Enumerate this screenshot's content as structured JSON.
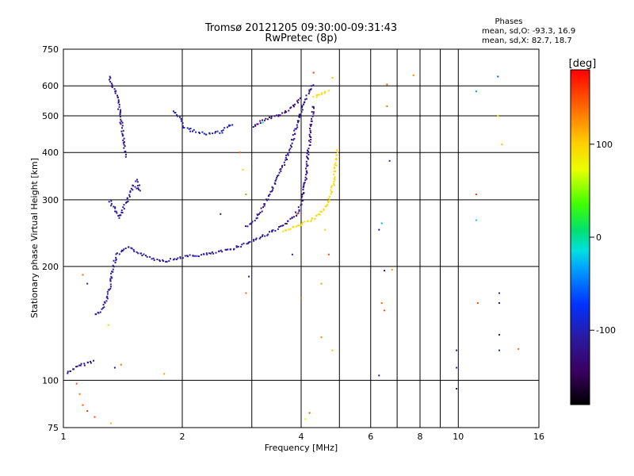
{
  "chart_data": {
    "type": "scatter",
    "title": "Tromsø 20121205 09:30:00-09:31:43",
    "subtitle": "RwPretec (8p)",
    "xlabel": "Frequency [MHz]",
    "ylabel": "Stationary phase Virtual Height [km]",
    "x_scale": "log",
    "y_scale": "log",
    "xlim": [
      1,
      16
    ],
    "ylim": [
      75,
      750
    ],
    "x_ticks": [
      1,
      2,
      4,
      6,
      8,
      10,
      16
    ],
    "x_tick_labels": [
      "1",
      "2",
      "4",
      "6",
      "8",
      "10",
      "16"
    ],
    "y_ticks": [
      75,
      100,
      200,
      300,
      400,
      500,
      600,
      750
    ],
    "y_tick_labels": [
      "75",
      "100",
      "200",
      "300",
      "400",
      "500",
      "600",
      "750"
    ],
    "grid": true,
    "stats": {
      "title": "Phases",
      "line1": "mean, sd,O: -93.3, 16.9",
      "line2": "mean, sd,X:  82.7, 18.7"
    },
    "colorbar": {
      "label": "[deg]",
      "range": [
        -180,
        180
      ],
      "ticks": [
        100,
        0,
        -100
      ],
      "tick_labels": [
        "100",
        "0",
        "-100"
      ]
    },
    "trace_segments": [
      {
        "phase": -115,
        "points": [
          [
            1.02,
            105
          ],
          [
            1.06,
            108
          ],
          [
            1.1,
            110
          ],
          [
            1.15,
            112
          ],
          [
            1.2,
            113
          ]
        ]
      },
      {
        "phase": -110,
        "points": [
          [
            1.2,
            150
          ],
          [
            1.24,
            153
          ],
          [
            1.27,
            160
          ],
          [
            1.3,
            175
          ],
          [
            1.32,
            190
          ],
          [
            1.34,
            205
          ],
          [
            1.36,
            215
          ],
          [
            1.4,
            220
          ],
          [
            1.45,
            225
          ],
          [
            1.5,
            222
          ],
          [
            1.6,
            215
          ],
          [
            1.7,
            210
          ],
          [
            1.8,
            208
          ],
          [
            1.9,
            210
          ],
          [
            2.0,
            213
          ],
          [
            2.2,
            215
          ],
          [
            2.4,
            218
          ],
          [
            2.6,
            222
          ],
          [
            2.8,
            228
          ],
          [
            3.0,
            235
          ],
          [
            3.2,
            242
          ],
          [
            3.4,
            250
          ],
          [
            3.6,
            258
          ]
        ]
      },
      {
        "phase": -120,
        "points": [
          [
            3.6,
            258
          ],
          [
            3.8,
            270
          ],
          [
            3.9,
            280
          ],
          [
            4.0,
            295
          ],
          [
            4.05,
            320
          ],
          [
            4.1,
            350
          ],
          [
            4.15,
            400
          ],
          [
            4.2,
            450
          ],
          [
            4.25,
            500
          ],
          [
            4.3,
            540
          ]
        ]
      },
      {
        "phase": -118,
        "points": [
          [
            2.9,
            255
          ],
          [
            3.0,
            262
          ],
          [
            3.1,
            275
          ],
          [
            3.2,
            290
          ],
          [
            3.3,
            310
          ],
          [
            3.4,
            330
          ],
          [
            3.5,
            350
          ],
          [
            3.6,
            375
          ],
          [
            3.7,
            400
          ],
          [
            3.8,
            440
          ],
          [
            3.9,
            480
          ],
          [
            4.0,
            520
          ],
          [
            4.1,
            560
          ],
          [
            4.2,
            590
          ],
          [
            4.3,
            610
          ]
        ]
      },
      {
        "phase": -118,
        "points": [
          [
            1.3,
            640
          ],
          [
            1.32,
            610
          ],
          [
            1.34,
            590
          ],
          [
            1.36,
            570
          ],
          [
            1.38,
            520
          ],
          [
            1.4,
            470
          ],
          [
            1.42,
            420
          ],
          [
            1.44,
            390
          ]
        ]
      },
      {
        "phase": -110,
        "points": [
          [
            1.3,
            300
          ],
          [
            1.33,
            290
          ],
          [
            1.36,
            280
          ],
          [
            1.38,
            270
          ],
          [
            1.5,
            330
          ],
          [
            1.55,
            320
          ],
          [
            1.52,
            345
          ]
        ]
      },
      {
        "phase": -100,
        "points": [
          [
            1.9,
            520
          ],
          [
            1.95,
            500
          ],
          [
            2.0,
            470
          ],
          [
            2.1,
            460
          ],
          [
            2.3,
            450
          ],
          [
            2.5,
            455
          ],
          [
            2.6,
            470
          ],
          [
            2.7,
            480
          ]
        ]
      },
      {
        "phase": -130,
        "points": [
          [
            3.0,
            470
          ],
          [
            3.1,
            480
          ],
          [
            3.2,
            490
          ],
          [
            3.4,
            500
          ],
          [
            3.6,
            510
          ],
          [
            3.8,
            530
          ],
          [
            4.0,
            560
          ]
        ]
      },
      {
        "phase": 95,
        "points": [
          [
            3.6,
            250
          ],
          [
            3.8,
            255
          ],
          [
            4.0,
            260
          ],
          [
            4.2,
            265
          ],
          [
            4.4,
            275
          ],
          [
            4.6,
            290
          ],
          [
            4.7,
            305
          ],
          [
            4.8,
            330
          ],
          [
            4.85,
            360
          ],
          [
            4.9,
            390
          ],
          [
            4.95,
            410
          ]
        ]
      },
      {
        "phase": 90,
        "points": [
          [
            4.3,
            560
          ],
          [
            4.4,
            570
          ],
          [
            4.6,
            580
          ],
          [
            4.7,
            585
          ]
        ]
      }
    ],
    "scatter_points": [
      {
        "x": 6.6,
        "y": 605,
        "phase": 150
      },
      {
        "x": 6.6,
        "y": 530,
        "phase": 140
      },
      {
        "x": 7.7,
        "y": 640,
        "phase": 130
      },
      {
        "x": 6.3,
        "y": 250,
        "phase": -120
      },
      {
        "x": 6.4,
        "y": 260,
        "phase": -30
      },
      {
        "x": 6.5,
        "y": 195,
        "phase": -150
      },
      {
        "x": 6.4,
        "y": 160,
        "phase": 140
      },
      {
        "x": 6.5,
        "y": 153,
        "phase": 150
      },
      {
        "x": 6.3,
        "y": 103,
        "phase": -120
      },
      {
        "x": 6.7,
        "y": 380,
        "phase": -90
      },
      {
        "x": 9.9,
        "y": 120,
        "phase": -110
      },
      {
        "x": 9.9,
        "y": 108,
        "phase": -100
      },
      {
        "x": 9.9,
        "y": 95,
        "phase": -130
      },
      {
        "x": 11.1,
        "y": 310,
        "phase": 160
      },
      {
        "x": 11.1,
        "y": 265,
        "phase": -20
      },
      {
        "x": 11.2,
        "y": 160,
        "phase": 150
      },
      {
        "x": 11.1,
        "y": 580,
        "phase": -40
      },
      {
        "x": 12.6,
        "y": 635,
        "phase": -60
      },
      {
        "x": 12.7,
        "y": 170,
        "phase": -100
      },
      {
        "x": 12.7,
        "y": 160,
        "phase": -110
      },
      {
        "x": 12.7,
        "y": 132,
        "phase": -120
      },
      {
        "x": 12.7,
        "y": 120,
        "phase": -90
      },
      {
        "x": 12.6,
        "y": 500,
        "phase": 80
      },
      {
        "x": 12.9,
        "y": 420,
        "phase": 110
      },
      {
        "x": 14.2,
        "y": 121,
        "phase": 140
      },
      {
        "x": 2.5,
        "y": 275,
        "phase": -120
      },
      {
        "x": 2.8,
        "y": 400,
        "phase": 150
      },
      {
        "x": 2.85,
        "y": 360,
        "phase": 100
      },
      {
        "x": 2.9,
        "y": 310,
        "phase": 130
      },
      {
        "x": 2.9,
        "y": 170,
        "phase": 140
      },
      {
        "x": 2.95,
        "y": 188,
        "phase": -110
      },
      {
        "x": 1.8,
        "y": 104,
        "phase": 120
      },
      {
        "x": 1.4,
        "y": 110,
        "phase": 140
      },
      {
        "x": 1.35,
        "y": 108,
        "phase": -120
      },
      {
        "x": 1.3,
        "y": 140,
        "phase": 60
      },
      {
        "x": 1.12,
        "y": 190,
        "phase": 140
      },
      {
        "x": 1.15,
        "y": 180,
        "phase": -110
      },
      {
        "x": 1.08,
        "y": 98,
        "phase": 150
      },
      {
        "x": 1.1,
        "y": 92,
        "phase": 140
      },
      {
        "x": 1.12,
        "y": 86,
        "phase": 150
      },
      {
        "x": 1.15,
        "y": 83,
        "phase": 160
      },
      {
        "x": 1.2,
        "y": 80,
        "phase": 150
      },
      {
        "x": 1.32,
        "y": 77,
        "phase": 110
      },
      {
        "x": 4.2,
        "y": 82,
        "phase": 150
      },
      {
        "x": 4.1,
        "y": 79,
        "phase": 80
      },
      {
        "x": 4.7,
        "y": 215,
        "phase": 150
      },
      {
        "x": 4.6,
        "y": 250,
        "phase": 100
      },
      {
        "x": 4.5,
        "y": 180,
        "phase": 120
      },
      {
        "x": 4.5,
        "y": 130,
        "phase": 130
      },
      {
        "x": 4.8,
        "y": 120,
        "phase": 110
      },
      {
        "x": 4.0,
        "y": 165,
        "phase": 130
      },
      {
        "x": 3.9,
        "y": 275,
        "phase": 150
      },
      {
        "x": 3.8,
        "y": 215,
        "phase": -100
      },
      {
        "x": 4.8,
        "y": 630,
        "phase": 110
      },
      {
        "x": 4.3,
        "y": 650,
        "phase": 160
      },
      {
        "x": 3.2,
        "y": 480,
        "phase": -10
      },
      {
        "x": 6.8,
        "y": 196,
        "phase": 120
      }
    ]
  }
}
